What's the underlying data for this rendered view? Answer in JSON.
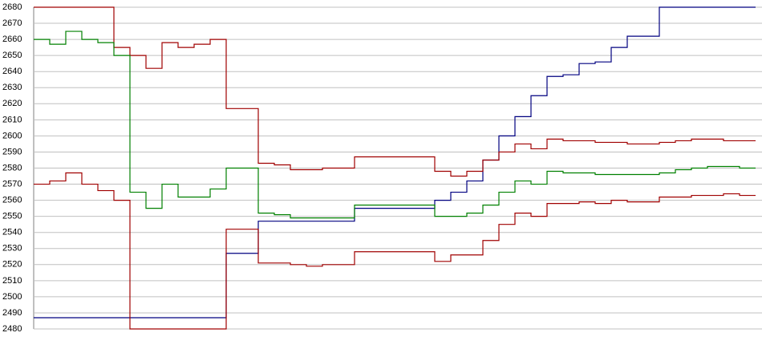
{
  "chart_data": {
    "type": "line",
    "categories": [
      null,
      null,
      null,
      null,
      null,
      null,
      null,
      null,
      null,
      null,
      null,
      null,
      null,
      null,
      null,
      null,
      null,
      null,
      null,
      null,
      null,
      null,
      null,
      null,
      null,
      null,
      null,
      null,
      null,
      null,
      null,
      null,
      null,
      null,
      null,
      null,
      null,
      null,
      null,
      null,
      null,
      null,
      null,
      null,
      null,
      null
    ],
    "series": [
      {
        "color": "#000080",
        "values": [
          2487,
          2487,
          2487,
          2487,
          2487,
          2487,
          2487,
          2487,
          2487,
          2487,
          2487,
          2487,
          2527,
          2527,
          2547,
          2547,
          2547,
          2547,
          2547,
          2547,
          2555,
          2555,
          2555,
          2555,
          2555,
          2560,
          2565,
          2572,
          2585,
          2600,
          2612,
          2625,
          2637,
          2638,
          2645,
          2646,
          2655,
          2662,
          2662,
          2680,
          2680,
          2680,
          2680,
          2680,
          2680,
          2680
        ]
      },
      {
        "color": "#a00000",
        "values": [
          2680,
          2680,
          2680,
          2680,
          2680,
          2655,
          2650,
          2642,
          2658,
          2655,
          2657,
          2660,
          2617,
          2617,
          2583,
          2582,
          2579,
          2579,
          2580,
          2580,
          2587,
          2587,
          2587,
          2587,
          2587,
          2578,
          2575,
          2578,
          2585,
          2590,
          2595,
          2592,
          2598,
          2597,
          2597,
          2596,
          2596,
          2595,
          2595,
          2596,
          2597,
          2598,
          2598,
          2597,
          2597,
          2597
        ]
      },
      {
        "color": "#008000",
        "values": [
          2660,
          2657,
          2665,
          2660,
          2658,
          2650,
          2565,
          2555,
          2570,
          2562,
          2562,
          2567,
          2580,
          2580,
          2552,
          2551,
          2549,
          2549,
          2549,
          2549,
          2557,
          2557,
          2557,
          2557,
          2557,
          2550,
          2550,
          2552,
          2557,
          2565,
          2572,
          2570,
          2578,
          2577,
          2577,
          2576,
          2576,
          2576,
          2576,
          2577,
          2579,
          2580,
          2581,
          2581,
          2580,
          2580
        ]
      },
      {
        "color": "#a00000",
        "values": [
          2570,
          2572,
          2577,
          2570,
          2566,
          2560,
          2480,
          2480,
          2480,
          2480,
          2480,
          2480,
          2542,
          2542,
          2521,
          2521,
          2520,
          2519,
          2520,
          2520,
          2528,
          2528,
          2528,
          2528,
          2528,
          2522,
          2526,
          2526,
          2535,
          2545,
          2552,
          2550,
          2558,
          2558,
          2559,
          2558,
          2560,
          2559,
          2559,
          2562,
          2562,
          2563,
          2563,
          2564,
          2563,
          2563
        ]
      }
    ],
    "ylim": [
      2480,
      2680
    ],
    "yticks": [
      2480,
      2490,
      2500,
      2510,
      2520,
      2530,
      2540,
      2550,
      2560,
      2570,
      2580,
      2590,
      2600,
      2610,
      2620,
      2630,
      2640,
      2650,
      2660,
      2670,
      2680
    ],
    "grid": true
  }
}
